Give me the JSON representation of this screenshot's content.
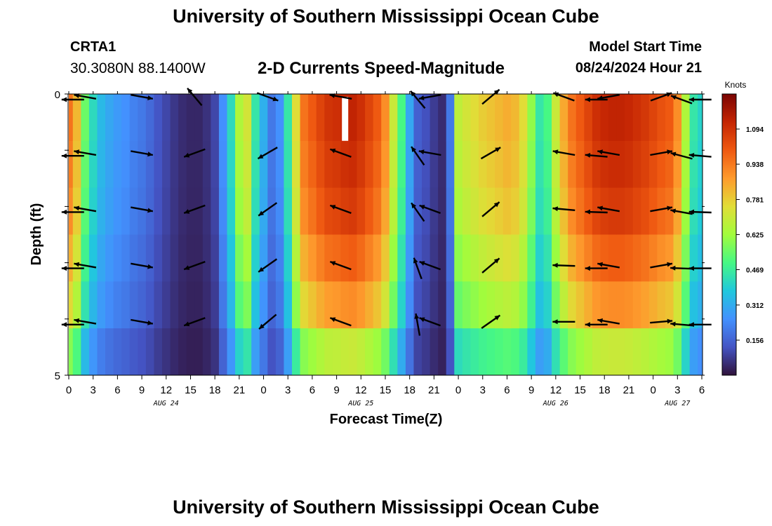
{
  "header": {
    "title": "University of Southern Mississippi Ocean Cube",
    "station_id": "CRTA1",
    "coordinates": "30.3080N  88.1400W",
    "product": "2-D Currents Speed-Magnitude",
    "model_start_label": "Model Start Time",
    "model_start_value": "08/24/2024 Hour 21"
  },
  "footer": {
    "title": "University of Southern Mississippi Ocean Cube"
  },
  "colors": {
    "arrow": "#000000",
    "missing_cell": "#ffffff"
  },
  "chart_data": {
    "type": "heatmap",
    "title": "2-D Currents Speed-Magnitude",
    "xlabel": "Forecast Time(Z)",
    "ylabel": "Depth (ft)",
    "ylim": [
      0,
      5
    ],
    "y_tick_labels": [
      "0",
      "5"
    ],
    "x_tick_labels": [
      "0",
      "3",
      "6",
      "9",
      "12",
      "15",
      "18",
      "21",
      "0",
      "3",
      "6",
      "9",
      "12",
      "15",
      "18",
      "21",
      "0",
      "3",
      "6",
      "9",
      "12",
      "15",
      "18",
      "21",
      "0",
      "3",
      "6"
    ],
    "x_hours": [
      0,
      3,
      6,
      9,
      12,
      15,
      18,
      21,
      24,
      27,
      30,
      33,
      36,
      39,
      42,
      45,
      48,
      51,
      54,
      57,
      60,
      63,
      66,
      69,
      72,
      75,
      78
    ],
    "date_labels": [
      {
        "text": "AUG 24",
        "hour": 12
      },
      {
        "text": "AUG 25",
        "hour": 36
      },
      {
        "text": "AUG 26",
        "hour": 60
      },
      {
        "text": "AUG 27",
        "hour": 75
      }
    ],
    "colorbar": {
      "units": "Knots",
      "range": [
        0,
        1.25
      ],
      "ticks": [
        "1.094",
        "0.938",
        "0.781",
        "0.625",
        "0.469",
        "0.312",
        "0.156"
      ]
    },
    "speed_profile": {
      "hours": [
        0,
        1,
        2,
        3,
        4,
        5,
        6,
        7,
        8,
        9,
        10,
        11,
        12,
        13,
        14,
        15,
        16,
        17,
        18,
        19,
        20,
        21,
        22,
        23,
        24,
        25,
        26,
        27,
        28,
        29,
        30,
        31,
        32,
        33,
        34,
        35,
        36,
        37,
        38,
        39,
        40,
        41,
        42,
        43,
        44,
        45,
        46,
        47,
        48,
        49,
        50,
        51,
        52,
        53,
        54,
        55,
        56,
        57,
        58,
        59,
        60,
        61,
        62,
        63,
        64,
        65,
        66,
        67,
        68,
        69,
        70,
        71,
        72,
        73,
        74,
        75,
        76,
        77,
        78
      ],
      "surface_speed": [
        0.95,
        0.82,
        0.55,
        0.42,
        0.34,
        0.3,
        0.27,
        0.25,
        0.22,
        0.2,
        0.17,
        0.13,
        0.1,
        0.07,
        0.05,
        0.04,
        0.04,
        0.06,
        0.1,
        0.25,
        0.42,
        0.65,
        0.72,
        0.45,
        0.32,
        0.2,
        0.25,
        0.45,
        0.75,
        0.95,
        1.0,
        1.05,
        1.09,
        1.1,
        1.12,
        1.13,
        1.1,
        1.05,
        1.0,
        0.9,
        0.7,
        0.5,
        0.3,
        0.15,
        0.12,
        0.08,
        0.05,
        0.2,
        0.68,
        0.72,
        0.75,
        0.78,
        0.8,
        0.82,
        0.84,
        0.82,
        0.75,
        0.6,
        0.45,
        0.5,
        0.7,
        0.85,
        0.95,
        1.0,
        1.05,
        1.1,
        1.12,
        1.13,
        1.13,
        1.12,
        1.1,
        1.08,
        1.05,
        1.02,
        1.0,
        0.9,
        0.65,
        0.45,
        0.4
      ],
      "depth_factor": [
        1.0,
        0.98,
        0.95,
        0.88,
        0.8,
        0.62
      ]
    },
    "missing_cells": [
      {
        "hour": 34,
        "layer": 0
      }
    ],
    "depth_rows": [
      0,
      1,
      2,
      3,
      4,
      5
    ],
    "vectors": {
      "hours": [
        2,
        9,
        15.5,
        24.5,
        33.5,
        44.5,
        52,
        61,
        66.5,
        73
      ],
      "angles_by_row": [
        [
          -170,
          10,
          230,
          20,
          -170,
          -190,
          -40,
          -160,
          -190,
          -20
        ],
        [
          -170,
          10,
          160,
          150,
          -160,
          -170,
          -30,
          -170,
          -170,
          -10
        ],
        [
          -170,
          10,
          160,
          145,
          -160,
          -160,
          -40,
          -175,
          -170,
          -10
        ],
        [
          -170,
          10,
          160,
          145,
          -160,
          -160,
          -40,
          -178,
          -170,
          -10
        ],
        [
          -170,
          10,
          160,
          140,
          -160,
          -160,
          -35,
          -180,
          -170,
          -5
        ]
      ],
      "extra_hours": [
        0.5,
        43,
        65,
        75.5,
        77.8
      ],
      "extra_angles_by_row": [
        [
          -180,
          -130,
          -180,
          -160,
          -180
        ],
        [
          -180,
          -125,
          -175,
          -165,
          -175
        ],
        [
          -180,
          -125,
          -178,
          -170,
          -178
        ],
        [
          -180,
          -110,
          -180,
          -178,
          -180
        ],
        [
          -180,
          -100,
          -180,
          -175,
          -180
        ]
      ]
    }
  }
}
